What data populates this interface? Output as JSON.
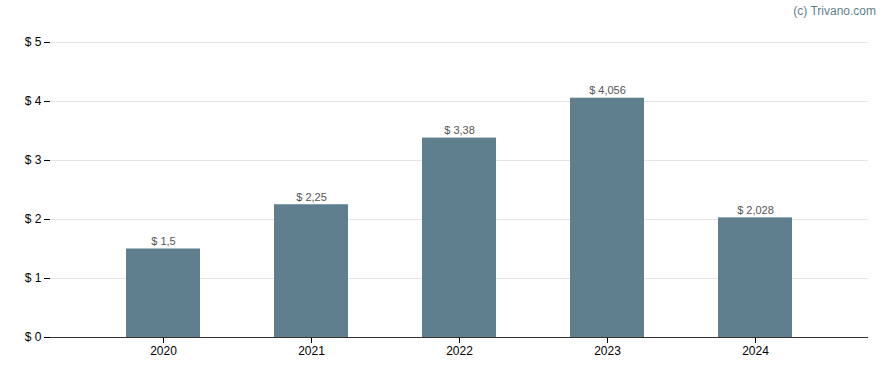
{
  "chart_data": {
    "type": "bar",
    "categories": [
      "2020",
      "2021",
      "2022",
      "2023",
      "2024"
    ],
    "values": [
      1.5,
      2.25,
      3.38,
      4.056,
      2.028
    ],
    "value_labels": [
      "$ 1,5",
      "$ 2,25",
      "$ 3,38",
      "$ 4,056",
      "$ 2,028"
    ],
    "data_labels": true,
    "color": "#5f7f8e",
    "ylim": [
      0,
      5
    ],
    "yticks": [
      {
        "value": 0,
        "label": "$ 0"
      },
      {
        "value": 1,
        "label": "$ 1"
      },
      {
        "value": 2,
        "label": "$ 2"
      },
      {
        "value": 3,
        "label": "$ 3"
      },
      {
        "value": 4,
        "label": "$ 4"
      },
      {
        "value": 5,
        "label": "$ 5"
      }
    ],
    "grid": true,
    "annotation": "(c) Trivano.com"
  }
}
